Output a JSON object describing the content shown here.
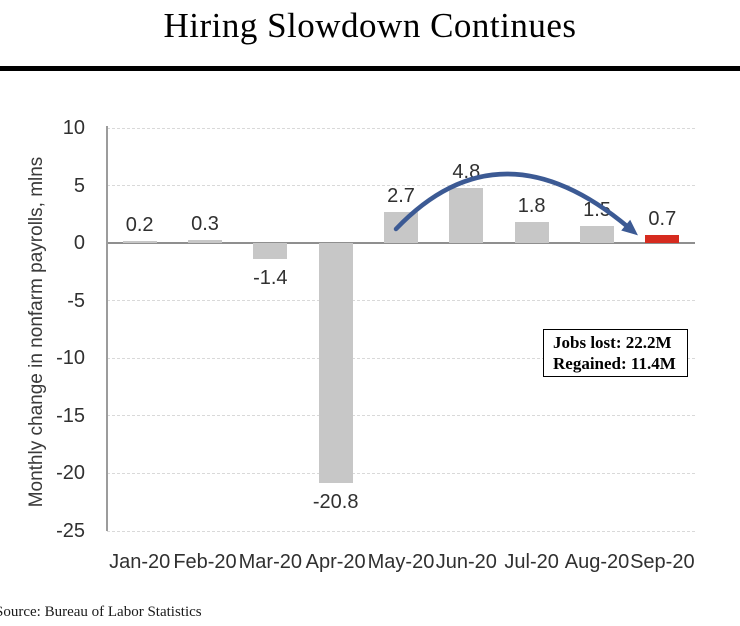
{
  "title": {
    "text": "Hiring Slowdown Continues"
  },
  "chart_data": {
    "type": "bar",
    "title": "Hiring Slowdown Continues",
    "ylabel": "Monthly change in nonfarm payrolls, mlns",
    "xlabel": "",
    "categories": [
      "Jan-20",
      "Feb-20",
      "Mar-20",
      "Apr-20",
      "May-20",
      "Jun-20",
      "Jul-20",
      "Aug-20",
      "Sep-20"
    ],
    "values": [
      0.2,
      0.3,
      -1.4,
      -20.8,
      2.7,
      4.8,
      1.8,
      1.5,
      0.7
    ],
    "data_labels": [
      "0.2",
      "0.3",
      "-1.4",
      "-20.8",
      "2.7",
      "4.8",
      "1.8",
      "1.5",
      "0.7"
    ],
    "ylim": [
      -25,
      10
    ],
    "yticks": [
      10,
      5,
      0,
      -5,
      -10,
      -15,
      -20,
      -25
    ],
    "grid": "horizontal-dashed",
    "legend": "none",
    "colors": {
      "bar_default": "#C7C7C7",
      "bar_highlight": "#D62B1F",
      "highlight_index": 8,
      "arrow": "#3C5A94",
      "zero_axis": "#8F8F8F",
      "gridline": "#D9D9D9"
    },
    "annotation": {
      "line1": "Jobs lost: 22.2M",
      "line2": "Regained: 11.4M"
    }
  },
  "source": {
    "text": "Source: Bureau of Labor Statistics"
  }
}
